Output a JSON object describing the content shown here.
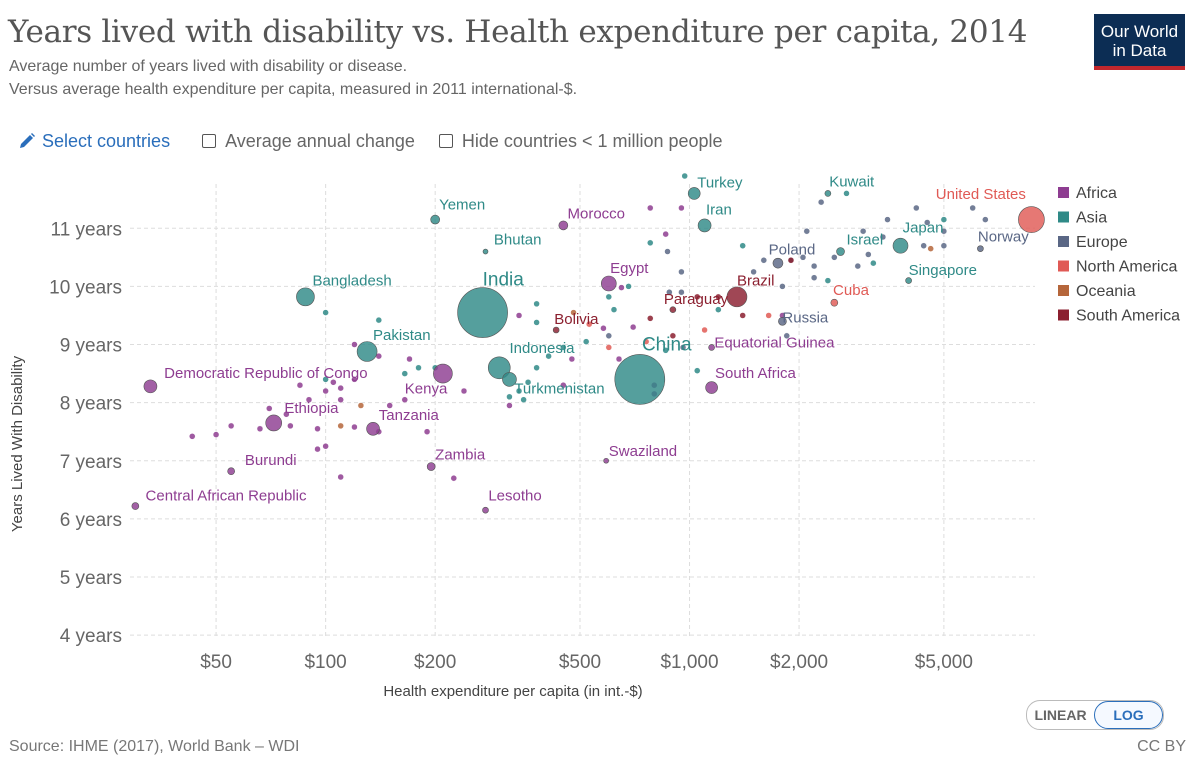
{
  "header": {
    "title": "Years lived with disability vs. Health expenditure per capita, 2014",
    "subtitle_1": "Average number of years lived with disability or disease.",
    "subtitle_2": "Versus average health expenditure per capita, measured in 2011 international-$.",
    "logo_line1": "Our World",
    "logo_line2": "in Data"
  },
  "controls": {
    "select_countries": "Select countries",
    "average_change": "Average annual change",
    "hide_small": "Hide countries < 1 million people"
  },
  "toggle": {
    "linear": "LINEAR",
    "log": "LOG",
    "active": "log"
  },
  "footer": {
    "source": "Source: IHME (2017), World Bank – WDI",
    "license": "CC BY"
  },
  "colors": {
    "Africa": "#8e3d91",
    "Asia": "#2f8a87",
    "Europe": "#5a6785",
    "North America": "#e05a55",
    "Oceania": "#b5663b",
    "South America": "#8b1f2f"
  },
  "chart_data": {
    "type": "scatter",
    "xlabel": "Health expenditure per capita (in int.-$)",
    "ylabel": "Years Lived With Disability",
    "x_scale": "log",
    "xlim": [
      29,
      8900
    ],
    "ylim": [
      3.95,
      11.9
    ],
    "x_ticks": [
      {
        "value": 50,
        "label": "$50"
      },
      {
        "value": 100,
        "label": "$100"
      },
      {
        "value": 200,
        "label": "$200"
      },
      {
        "value": 500,
        "label": "$500"
      },
      {
        "value": 1000,
        "label": "$1,000"
      },
      {
        "value": 2000,
        "label": "$2,000"
      },
      {
        "value": 5000,
        "label": "$5,000"
      }
    ],
    "y_ticks": [
      {
        "value": 4,
        "label": "4 years"
      },
      {
        "value": 5,
        "label": "5 years"
      },
      {
        "value": 6,
        "label": "6 years"
      },
      {
        "value": 7,
        "label": "7 years"
      },
      {
        "value": 8,
        "label": "8 years"
      },
      {
        "value": 9,
        "label": "9 years"
      },
      {
        "value": 10,
        "label": "10 years"
      },
      {
        "value": 11,
        "label": "11 years"
      }
    ],
    "grid": true,
    "legend_position": "right",
    "legend": [
      "Africa",
      "Asia",
      "Europe",
      "North America",
      "Oceania",
      "South America"
    ],
    "points": [
      {
        "label": "United States",
        "region": "North America",
        "x": 8700,
        "y": 11.15,
        "r": 13,
        "lx": 8400,
        "ly": 11.5,
        "la": "end",
        "bold": false
      },
      {
        "label": "Turkey",
        "region": "Asia",
        "x": 1030,
        "y": 11.6,
        "r": 6,
        "lx": 1050,
        "ly": 11.7,
        "la": "start"
      },
      {
        "label": "Kuwait",
        "region": "Asia",
        "x": 2400,
        "y": 11.6,
        "r": 3,
        "lx": 2420,
        "ly": 11.72,
        "la": "start"
      },
      {
        "label": "Yemen",
        "region": "Asia",
        "x": 200,
        "y": 11.15,
        "r": 4.5,
        "lx": 205,
        "ly": 11.32,
        "la": "start"
      },
      {
        "label": "Morocco",
        "region": "Africa",
        "x": 450,
        "y": 11.05,
        "r": 4.5,
        "lx": 462,
        "ly": 11.17,
        "la": "start"
      },
      {
        "label": "Iran",
        "region": "Asia",
        "x": 1100,
        "y": 11.05,
        "r": 6.5,
        "lx": 1110,
        "ly": 11.24,
        "la": "start"
      },
      {
        "label": "Bhutan",
        "region": "Asia",
        "x": 275,
        "y": 10.6,
        "r": 2.5,
        "lx": 290,
        "ly": 10.72,
        "la": "start"
      },
      {
        "label": "Japan",
        "region": "Asia",
        "x": 3800,
        "y": 10.7,
        "r": 7.5,
        "lx": 3850,
        "ly": 10.93,
        "la": "start"
      },
      {
        "label": "Israel",
        "region": "Asia",
        "x": 2600,
        "y": 10.6,
        "r": 4,
        "lx": 2700,
        "ly": 10.72,
        "la": "start"
      },
      {
        "label": "Norway",
        "region": "Europe",
        "x": 6300,
        "y": 10.65,
        "r": 3,
        "lx": 6200,
        "ly": 10.77,
        "la": "start"
      },
      {
        "label": "Poland",
        "region": "Europe",
        "x": 1750,
        "y": 10.4,
        "r": 5,
        "lx": 1650,
        "ly": 10.55,
        "la": "start"
      },
      {
        "label": "Singapore",
        "region": "Asia",
        "x": 4000,
        "y": 10.1,
        "r": 3,
        "lx": 4000,
        "ly": 10.2,
        "la": "start"
      },
      {
        "label": "Bangladesh",
        "region": "Asia",
        "x": 88,
        "y": 9.82,
        "r": 9,
        "lx": 92,
        "ly": 10.02,
        "la": "start"
      },
      {
        "label": "India",
        "region": "Asia",
        "x": 270,
        "y": 9.55,
        "r": 25,
        "lx": 270,
        "ly": 10.02,
        "la": "start",
        "big": true
      },
      {
        "label": "Egypt",
        "region": "Africa",
        "x": 600,
        "y": 10.05,
        "r": 7.5,
        "lx": 605,
        "ly": 10.23,
        "la": "start"
      },
      {
        "label": "Brazil",
        "region": "South America",
        "x": 1350,
        "y": 9.82,
        "r": 10,
        "lx": 1350,
        "ly": 10.02,
        "la": "start"
      },
      {
        "label": "Cuba",
        "region": "North America",
        "x": 2500,
        "y": 9.72,
        "r": 3.5,
        "lx": 2480,
        "ly": 9.85,
        "la": "start"
      },
      {
        "label": "Paraguay",
        "region": "South America",
        "x": 900,
        "y": 9.6,
        "r": 3,
        "lx": 850,
        "ly": 9.7,
        "la": "start"
      },
      {
        "label": "Russia",
        "region": "Europe",
        "x": 1800,
        "y": 9.4,
        "r": 4,
        "lx": 1800,
        "ly": 9.38,
        "la": "start"
      },
      {
        "label": "Bolivia",
        "region": "South America",
        "x": 430,
        "y": 9.25,
        "r": 3,
        "lx": 425,
        "ly": 9.35,
        "la": "start"
      },
      {
        "label": "Pakistan",
        "region": "Asia",
        "x": 130,
        "y": 8.88,
        "r": 10,
        "lx": 135,
        "ly": 9.08,
        "la": "start"
      },
      {
        "label": "China",
        "region": "Asia",
        "x": 730,
        "y": 8.4,
        "r": 25,
        "lx": 740,
        "ly": 8.9,
        "la": "start",
        "big": true
      },
      {
        "label": "Equatorial Guinea",
        "region": "Africa",
        "x": 1150,
        "y": 8.95,
        "r": 3,
        "lx": 1170,
        "ly": 8.95,
        "la": "start"
      },
      {
        "label": "Indonesia",
        "region": "Asia",
        "x": 300,
        "y": 8.6,
        "r": 11,
        "lx": 320,
        "ly": 8.85,
        "la": "start"
      },
      {
        "label": "Democratic Republic of Congo",
        "region": "Africa",
        "x": 33,
        "y": 8.28,
        "r": 6.5,
        "lx": 36,
        "ly": 8.42,
        "la": "start"
      },
      {
        "label": "South Africa",
        "region": "Africa",
        "x": 1150,
        "y": 8.26,
        "r": 6,
        "lx": 1175,
        "ly": 8.42,
        "la": "start"
      },
      {
        "label": "Kenya",
        "region": "Africa",
        "x": 210,
        "y": 8.5,
        "r": 9.5,
        "lx": 165,
        "ly": 8.16,
        "la": "start"
      },
      {
        "label": "Turkmenistan",
        "region": "Asia",
        "x": 320,
        "y": 8.4,
        "r": 7,
        "lx": 330,
        "ly": 8.16,
        "la": "start"
      },
      {
        "label": "Ethiopia",
        "region": "Africa",
        "x": 72,
        "y": 7.65,
        "r": 8,
        "lx": 77,
        "ly": 7.82,
        "la": "start"
      },
      {
        "label": "Tanzania",
        "region": "Africa",
        "x": 135,
        "y": 7.55,
        "r": 6.5,
        "lx": 140,
        "ly": 7.7,
        "la": "start"
      },
      {
        "label": "Burundi",
        "region": "Africa",
        "x": 55,
        "y": 6.82,
        "r": 3.5,
        "lx": 60,
        "ly": 6.93,
        "la": "start"
      },
      {
        "label": "Zambia",
        "region": "Africa",
        "x": 195,
        "y": 6.9,
        "r": 4,
        "lx": 200,
        "ly": 7.02,
        "la": "start"
      },
      {
        "label": "Swaziland",
        "region": "Africa",
        "x": 590,
        "y": 7.0,
        "r": 2.5,
        "lx": 600,
        "ly": 7.08,
        "la": "start"
      },
      {
        "label": "Central African Republic",
        "region": "Africa",
        "x": 30,
        "y": 6.22,
        "r": 3.5,
        "lx": 32,
        "ly": 6.32,
        "la": "start"
      },
      {
        "label": "Lesotho",
        "region": "Africa",
        "x": 275,
        "y": 6.15,
        "r": 3,
        "lx": 280,
        "ly": 6.32,
        "la": "start"
      }
    ],
    "minor_points": [
      {
        "region": "Asia",
        "x": 970,
        "y": 11.9
      },
      {
        "region": "Africa",
        "x": 780,
        "y": 11.35
      },
      {
        "region": "Africa",
        "x": 950,
        "y": 11.35
      },
      {
        "region": "Europe",
        "x": 2300,
        "y": 11.45
      },
      {
        "region": "Asia",
        "x": 2700,
        "y": 11.6
      },
      {
        "region": "Europe",
        "x": 4200,
        "y": 11.35
      },
      {
        "region": "Europe",
        "x": 6000,
        "y": 11.35
      },
      {
        "region": "Europe",
        "x": 4500,
        "y": 11.1
      },
      {
        "region": "Asia",
        "x": 5000,
        "y": 11.15
      },
      {
        "region": "Europe",
        "x": 6500,
        "y": 11.15
      },
      {
        "region": "Europe",
        "x": 3500,
        "y": 11.15
      },
      {
        "region": "Europe",
        "x": 2100,
        "y": 10.95
      },
      {
        "region": "Europe",
        "x": 3000,
        "y": 10.95
      },
      {
        "region": "Europe",
        "x": 3400,
        "y": 10.85
      },
      {
        "region": "Europe",
        "x": 5000,
        "y": 10.95
      },
      {
        "region": "Europe",
        "x": 4400,
        "y": 10.7
      },
      {
        "region": "Europe",
        "x": 5000,
        "y": 10.7
      },
      {
        "region": "Oceania",
        "x": 4600,
        "y": 10.65
      },
      {
        "region": "Europe",
        "x": 3100,
        "y": 10.55
      },
      {
        "region": "Europe",
        "x": 2900,
        "y": 10.35
      },
      {
        "region": "Europe",
        "x": 2500,
        "y": 10.5
      },
      {
        "region": "Europe",
        "x": 2200,
        "y": 10.35
      },
      {
        "region": "Europe",
        "x": 1900,
        "y": 10.45
      },
      {
        "region": "Europe",
        "x": 2050,
        "y": 10.5
      },
      {
        "region": "Asia",
        "x": 1400,
        "y": 10.7
      },
      {
        "region": "South America",
        "x": 1900,
        "y": 10.45
      },
      {
        "region": "Europe",
        "x": 2200,
        "y": 10.15
      },
      {
        "region": "Asia",
        "x": 2400,
        "y": 10.1
      },
      {
        "region": "Europe",
        "x": 1800,
        "y": 10.0
      },
      {
        "region": "Europe",
        "x": 1500,
        "y": 10.25
      },
      {
        "region": "Asia",
        "x": 3200,
        "y": 10.4
      },
      {
        "region": "Asia",
        "x": 780,
        "y": 10.75
      },
      {
        "region": "Africa",
        "x": 860,
        "y": 10.9
      },
      {
        "region": "Europe",
        "x": 950,
        "y": 10.25
      },
      {
        "region": "Europe",
        "x": 880,
        "y": 9.9
      },
      {
        "region": "Europe",
        "x": 950,
        "y": 9.9
      },
      {
        "region": "Africa",
        "x": 650,
        "y": 9.98
      },
      {
        "region": "Asia",
        "x": 600,
        "y": 9.82
      },
      {
        "region": "Asia",
        "x": 680,
        "y": 10.0
      },
      {
        "region": "South America",
        "x": 1050,
        "y": 9.82
      },
      {
        "region": "South America",
        "x": 1200,
        "y": 9.82
      },
      {
        "region": "Asia",
        "x": 1200,
        "y": 9.6
      },
      {
        "region": "North America",
        "x": 1100,
        "y": 9.25
      },
      {
        "region": "South America",
        "x": 1400,
        "y": 9.5
      },
      {
        "region": "North America",
        "x": 1650,
        "y": 9.5
      },
      {
        "region": "Europe",
        "x": 1850,
        "y": 9.15
      },
      {
        "region": "Africa",
        "x": 1800,
        "y": 9.5
      },
      {
        "region": "Asia",
        "x": 380,
        "y": 9.7
      },
      {
        "region": "Asia",
        "x": 380,
        "y": 9.38
      },
      {
        "region": "Oceania",
        "x": 480,
        "y": 9.55
      },
      {
        "region": "Africa",
        "x": 340,
        "y": 9.5
      },
      {
        "region": "Asia",
        "x": 620,
        "y": 9.6
      },
      {
        "region": "North America",
        "x": 530,
        "y": 9.35
      },
      {
        "region": "Africa",
        "x": 580,
        "y": 9.28
      },
      {
        "region": "Europe",
        "x": 600,
        "y": 9.15
      },
      {
        "region": "Africa",
        "x": 700,
        "y": 9.3
      },
      {
        "region": "South America",
        "x": 780,
        "y": 9.45
      },
      {
        "region": "North America",
        "x": 600,
        "y": 8.95
      },
      {
        "region": "Africa",
        "x": 640,
        "y": 8.75
      },
      {
        "region": "South America",
        "x": 900,
        "y": 9.15
      },
      {
        "region": "North America",
        "x": 760,
        "y": 9.05
      },
      {
        "region": "Asia",
        "x": 860,
        "y": 8.9
      },
      {
        "region": "Europe",
        "x": 960,
        "y": 8.95
      },
      {
        "region": "Asia",
        "x": 1050,
        "y": 8.55
      },
      {
        "region": "Africa",
        "x": 800,
        "y": 8.15
      },
      {
        "region": "Africa",
        "x": 800,
        "y": 8.3
      },
      {
        "region": "Asia",
        "x": 520,
        "y": 9.05
      },
      {
        "region": "Africa",
        "x": 475,
        "y": 8.75
      },
      {
        "region": "Asia",
        "x": 450,
        "y": 8.95
      },
      {
        "region": "Asia",
        "x": 380,
        "y": 8.6
      },
      {
        "region": "Asia",
        "x": 410,
        "y": 8.8
      },
      {
        "region": "Asia",
        "x": 360,
        "y": 8.35
      },
      {
        "region": "Asia",
        "x": 340,
        "y": 8.2
      },
      {
        "region": "Asia",
        "x": 350,
        "y": 8.05
      },
      {
        "region": "Africa",
        "x": 450,
        "y": 8.3
      },
      {
        "region": "Africa",
        "x": 320,
        "y": 7.95
      },
      {
        "region": "Asia",
        "x": 320,
        "y": 8.1
      },
      {
        "region": "Asia",
        "x": 165,
        "y": 8.5
      },
      {
        "region": "Asia",
        "x": 180,
        "y": 8.6
      },
      {
        "region": "Asia",
        "x": 200,
        "y": 8.6
      },
      {
        "region": "Asia",
        "x": 100,
        "y": 8.4
      },
      {
        "region": "Asia",
        "x": 140,
        "y": 9.42
      },
      {
        "region": "Asia",
        "x": 100,
        "y": 9.55
      },
      {
        "region": "Africa",
        "x": 120,
        "y": 9.0
      },
      {
        "region": "Africa",
        "x": 140,
        "y": 8.8
      },
      {
        "region": "Africa",
        "x": 170,
        "y": 8.75
      },
      {
        "region": "Africa",
        "x": 120,
        "y": 8.4
      },
      {
        "region": "Africa",
        "x": 100,
        "y": 8.2
      },
      {
        "region": "Africa",
        "x": 105,
        "y": 8.35
      },
      {
        "region": "Africa",
        "x": 110,
        "y": 8.25
      },
      {
        "region": "Africa",
        "x": 240,
        "y": 8.2
      },
      {
        "region": "Africa",
        "x": 165,
        "y": 8.05
      },
      {
        "region": "Africa",
        "x": 150,
        "y": 7.95
      },
      {
        "region": "Africa",
        "x": 110,
        "y": 8.05
      },
      {
        "region": "Africa",
        "x": 85,
        "y": 8.3
      },
      {
        "region": "Africa",
        "x": 90,
        "y": 8.05
      },
      {
        "region": "Africa",
        "x": 70,
        "y": 7.9
      },
      {
        "region": "Africa",
        "x": 78,
        "y": 7.8
      },
      {
        "region": "Africa",
        "x": 80,
        "y": 7.6
      },
      {
        "region": "Africa",
        "x": 66,
        "y": 7.55
      },
      {
        "region": "Africa",
        "x": 55,
        "y": 7.6
      },
      {
        "region": "Africa",
        "x": 50,
        "y": 7.45
      },
      {
        "region": "Africa",
        "x": 43,
        "y": 7.42
      },
      {
        "region": "Africa",
        "x": 95,
        "y": 7.55
      },
      {
        "region": "Africa",
        "x": 120,
        "y": 7.58
      },
      {
        "region": "Africa",
        "x": 140,
        "y": 7.5
      },
      {
        "region": "Africa",
        "x": 190,
        "y": 7.5
      },
      {
        "region": "Africa",
        "x": 100,
        "y": 7.25
      },
      {
        "region": "Africa",
        "x": 95,
        "y": 7.2
      },
      {
        "region": "Africa",
        "x": 110,
        "y": 6.72
      },
      {
        "region": "Africa",
        "x": 225,
        "y": 6.7
      },
      {
        "region": "Oceania",
        "x": 125,
        "y": 7.95
      },
      {
        "region": "Oceania",
        "x": 110,
        "y": 7.6
      },
      {
        "region": "Europe",
        "x": 870,
        "y": 10.6
      },
      {
        "region": "Europe",
        "x": 1600,
        "y": 10.45
      }
    ]
  }
}
